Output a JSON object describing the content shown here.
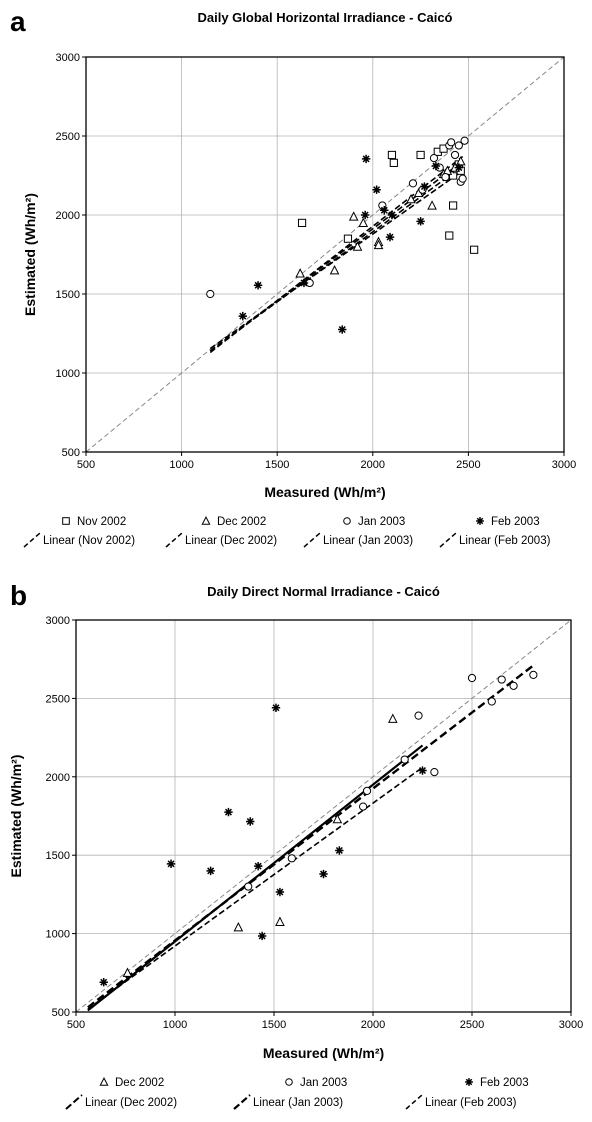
{
  "chart_data": [
    {
      "panel_letter": "a",
      "type": "scatter",
      "title": "Daily Global Horizontal Irradiance - Caicó",
      "xlabel": "Measured (Wh/m²)",
      "ylabel": "Estimated (Wh/m²)",
      "xlim": [
        500,
        3000
      ],
      "ylim": [
        500,
        3000
      ],
      "xticks": [
        500,
        1000,
        1500,
        2000,
        2500,
        3000
      ],
      "yticks": [
        500,
        1000,
        1500,
        2000,
        2500,
        3000
      ],
      "grid": true,
      "legend_position": "bottom",
      "series": [
        {
          "name": "Nov 2002",
          "marker": "square",
          "points": [
            [
              1630,
              1950
            ],
            [
              1870,
              1850
            ],
            [
              2100,
              2380
            ],
            [
              2110,
              2330
            ],
            [
              2250,
              2380
            ],
            [
              2340,
              2400
            ],
            [
              2370,
              2420
            ],
            [
              2400,
              1870
            ],
            [
              2420,
              2060
            ],
            [
              2420,
              2250
            ],
            [
              2440,
              2290
            ],
            [
              2450,
              2320
            ],
            [
              2460,
              2280
            ],
            [
              2530,
              1780
            ]
          ]
        },
        {
          "name": "Dec 2002",
          "marker": "triangle",
          "points": [
            [
              1620,
              1630
            ],
            [
              1800,
              1650
            ],
            [
              1900,
              1990
            ],
            [
              1920,
              1800
            ],
            [
              1950,
              1950
            ],
            [
              2030,
              1830
            ],
            [
              2030,
              1810
            ],
            [
              2200,
              2100
            ],
            [
              2240,
              2140
            ],
            [
              2310,
              2060
            ],
            [
              2370,
              2260
            ],
            [
              2390,
              2280
            ],
            [
              2430,
              2300
            ],
            [
              2460,
              2340
            ]
          ]
        },
        {
          "name": "Jan 2003",
          "marker": "circle",
          "points": [
            [
              1150,
              1500
            ],
            [
              1670,
              1570
            ],
            [
              2050,
              2060
            ],
            [
              2210,
              2200
            ],
            [
              2260,
              2160
            ],
            [
              2320,
              2360
            ],
            [
              2350,
              2300
            ],
            [
              2380,
              2240
            ],
            [
              2400,
              2440
            ],
            [
              2410,
              2460
            ],
            [
              2430,
              2380
            ],
            [
              2450,
              2440
            ],
            [
              2460,
              2210
            ],
            [
              2470,
              2230
            ],
            [
              2480,
              2470
            ]
          ]
        },
        {
          "name": "Feb 2003",
          "marker": "star",
          "points": [
            [
              1320,
              1360
            ],
            [
              1400,
              1555
            ],
            [
              1640,
              1570
            ],
            [
              1840,
              1275
            ],
            [
              1960,
              2000
            ],
            [
              1965,
              2355
            ],
            [
              2020,
              2160
            ],
            [
              2060,
              2030
            ],
            [
              2090,
              1860
            ],
            [
              2100,
              2000
            ],
            [
              2250,
              1960
            ],
            [
              2270,
              2180
            ],
            [
              2330,
              2310
            ],
            [
              2450,
              2300
            ]
          ]
        }
      ],
      "trendlines": [
        {
          "name": "Linear (Nov 2002)",
          "x": [
            1150,
            2470
          ],
          "y": [
            1140,
            2340
          ]
        },
        {
          "name": "Linear (Dec 2002)",
          "x": [
            1150,
            2470
          ],
          "y": [
            1155,
            2280
          ]
        },
        {
          "name": "Linear (Jan 2003)",
          "x": [
            1150,
            2470
          ],
          "y": [
            1130,
            2370
          ]
        },
        {
          "name": "Linear (Feb 2003)",
          "x": [
            1150,
            2470
          ],
          "y": [
            1140,
            2310
          ]
        }
      ],
      "reference_line": {
        "x": [
          500,
          3000
        ],
        "y": [
          500,
          3000
        ]
      }
    },
    {
      "panel_letter": "b",
      "type": "scatter",
      "title": "Daily Direct Normal Irradiance - Caicó",
      "xlabel": "Measured (Wh/m²)",
      "ylabel": "Estimated (Wh/m²)",
      "xlim": [
        500,
        3000
      ],
      "ylim": [
        500,
        3000
      ],
      "xticks": [
        500,
        1000,
        1500,
        2000,
        2500,
        3000
      ],
      "yticks": [
        500,
        1000,
        1500,
        2000,
        2500,
        3000
      ],
      "grid": true,
      "legend_position": "bottom",
      "series": [
        {
          "name": "Dec 2002",
          "marker": "triangle",
          "points": [
            [
              760,
              750
            ],
            [
              1320,
              1040
            ],
            [
              1530,
              1075
            ],
            [
              1820,
              1730
            ],
            [
              2100,
              2370
            ]
          ]
        },
        {
          "name": "Jan 2003",
          "marker": "circle",
          "points": [
            [
              1370,
              1300
            ],
            [
              1590,
              1480
            ],
            [
              1950,
              1810
            ],
            [
              1970,
              1910
            ],
            [
              2160,
              2110
            ],
            [
              2230,
              2390
            ],
            [
              2310,
              2030
            ],
            [
              2500,
              2630
            ],
            [
              2600,
              2480
            ],
            [
              2650,
              2620
            ],
            [
              2710,
              2580
            ],
            [
              2810,
              2650
            ]
          ]
        },
        {
          "name": "Feb 2003",
          "marker": "star",
          "points": [
            [
              640,
              690
            ],
            [
              980,
              1445
            ],
            [
              1180,
              1400
            ],
            [
              1270,
              1775
            ],
            [
              1380,
              1715
            ],
            [
              1420,
              1430
            ],
            [
              1440,
              985
            ],
            [
              1510,
              2440
            ],
            [
              1530,
              1265
            ],
            [
              1750,
              1380
            ],
            [
              1830,
              1530
            ],
            [
              2250,
              2040
            ]
          ]
        }
      ],
      "trendlines": [
        {
          "name": "Linear (Dec 2002)",
          "x": [
            560,
            2250
          ],
          "y": [
            510,
            2200
          ],
          "style": "solid-thick"
        },
        {
          "name": "Linear (Jan 2003)",
          "x": [
            560,
            2820
          ],
          "y": [
            530,
            2720
          ],
          "style": "dashed-thick"
        },
        {
          "name": "Linear (Feb 2003)",
          "x": [
            560,
            2250
          ],
          "y": [
            520,
            2060
          ],
          "style": "dashed"
        }
      ],
      "reference_line": {
        "x": [
          500,
          3000
        ],
        "y": [
          500,
          3000
        ]
      }
    }
  ]
}
